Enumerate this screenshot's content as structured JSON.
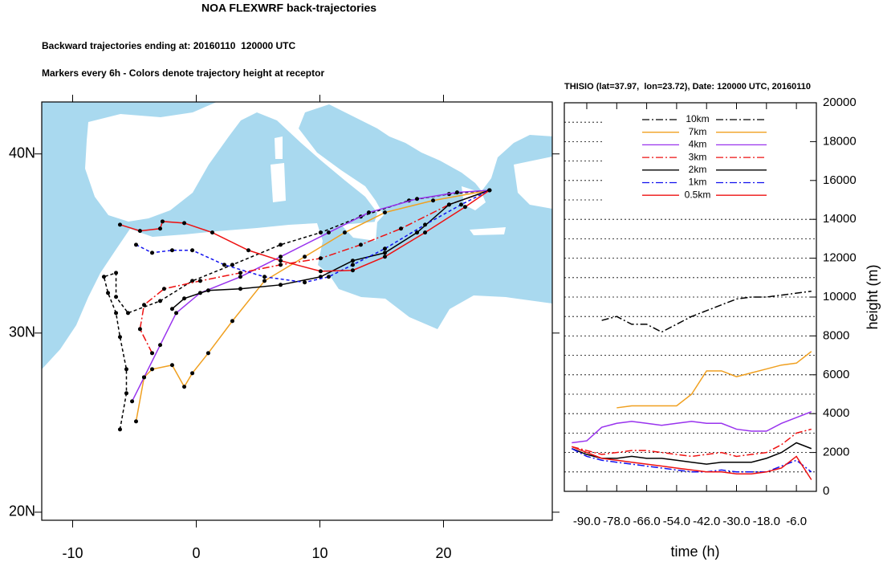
{
  "chart_data": [
    {
      "type": "map",
      "title": "NOA FLEXWRF back-trajectories",
      "subtitle": "Backward trajectories ending at: 20160110  120000 UTC",
      "note": "Markers every 6h - Colors denote trajectory height at receptor",
      "xlim": [
        -12.5,
        28.8
      ],
      "ylim": [
        19.55,
        42.9
      ],
      "xticks": [
        -10,
        0,
        10,
        20
      ],
      "yticks": [
        {
          "value": 20,
          "label": "20N"
        },
        {
          "value": 30,
          "label": "30N"
        },
        {
          "value": 40,
          "label": "40N"
        }
      ],
      "series": [
        {
          "color": "#000000",
          "dash": "dashed",
          "x": [
            -6.17,
            -5.65,
            -5.65,
            -6.17,
            -6.49,
            -7.14,
            -7.47,
            -6.49,
            -6.49,
            -5.52,
            -2.92,
            -0.32,
            2.92,
            6.82,
            10.06,
            13.31,
            17.21,
            20.45,
            23.72
          ],
          "values": [
            24.62,
            26.64,
            27.98,
            29.78,
            31.12,
            32.24,
            33.14,
            33.36,
            32.02,
            31.12,
            31.79,
            32.91,
            33.81,
            34.93,
            35.61,
            36.5,
            37.4,
            37.76,
            37.97
          ]
        },
        {
          "color": "#f0a020",
          "dash": "solid",
          "x": [
            -4.87,
            -4.22,
            -3.57,
            -1.95,
            -0.97,
            -0.32,
            0.97,
            2.92,
            5.52,
            8.77,
            12.01,
            15.26,
            19.16,
            23.72
          ],
          "values": [
            25.07,
            27.53,
            27.98,
            28.21,
            27.0,
            27.76,
            28.88,
            30.67,
            32.91,
            34.26,
            35.61,
            36.73,
            37.4,
            37.97
          ]
        },
        {
          "color": "#9933ee",
          "dash": "solid",
          "x": [
            -5.19,
            -4.22,
            -2.92,
            -1.62,
            0.32,
            3.57,
            6.82,
            10.71,
            13.96,
            17.86,
            21.1,
            23.72
          ],
          "values": [
            26.19,
            27.53,
            29.33,
            31.12,
            32.24,
            33.14,
            34.26,
            35.61,
            36.73,
            37.49,
            37.85,
            37.97
          ]
        },
        {
          "color": "#ee1111",
          "dash": "dashdot",
          "x": [
            -3.57,
            -4.55,
            -4.22,
            -2.6,
            0.32,
            3.57,
            6.82,
            10.06,
            13.31,
            16.56,
            20.45,
            23.72
          ],
          "values": [
            28.88,
            30.22,
            31.57,
            32.47,
            32.91,
            33.36,
            33.81,
            34.17,
            34.93,
            35.83,
            37.17,
            37.97
          ]
        },
        {
          "color": "#000000",
          "dash": "solid",
          "x": [
            -1.95,
            -0.97,
            0.97,
            3.57,
            6.82,
            10.06,
            12.66,
            15.26,
            17.86,
            20.45,
            23.72
          ],
          "values": [
            31.35,
            31.93,
            32.38,
            32.47,
            32.69,
            33.14,
            34.04,
            34.48,
            35.61,
            37.17,
            37.97
          ]
        },
        {
          "color": "#1111ee",
          "dash": "dashed",
          "x": [
            -4.87,
            -3.57,
            -1.95,
            -0.32,
            2.27,
            5.52,
            8.77,
            10.71,
            12.66,
            15.26,
            18.51,
            21.43,
            23.72
          ],
          "values": [
            34.93,
            34.48,
            34.62,
            34.62,
            33.81,
            33.14,
            32.83,
            33.14,
            33.81,
            34.71,
            36.05,
            37.17,
            37.97
          ]
        },
        {
          "color": "#ee1111",
          "dash": "solid",
          "x": [
            -6.17,
            -4.55,
            -2.92,
            -2.73,
            -0.97,
            1.3,
            4.22,
            6.82,
            10.06,
            12.66,
            15.26,
            18.51,
            21.75,
            23.72
          ],
          "values": [
            36.05,
            35.7,
            35.83,
            36.23,
            36.14,
            35.61,
            34.62,
            34.04,
            33.45,
            33.5,
            34.26,
            35.61,
            37.04,
            37.97
          ]
        }
      ]
    },
    {
      "type": "line",
      "title": "THISIO (lat=37.97,  lon=23.72), Date: 120000 UTC, 20160110",
      "xlabel": "time (h)",
      "ylabel": "height (m)",
      "xlim": [
        -99,
        2
      ],
      "ylim": [
        0,
        20000
      ],
      "xticks": [
        {
          "value": -90,
          "label": "-90.0"
        },
        {
          "value": -78,
          "label": "-78.0"
        },
        {
          "value": -66,
          "label": "-66.0"
        },
        {
          "value": -54,
          "label": "-54.0"
        },
        {
          "value": -42,
          "label": "-42.0"
        },
        {
          "value": -30,
          "label": "-30.0"
        },
        {
          "value": -18,
          "label": "-18.0"
        },
        {
          "value": -6,
          "label": "-6.0"
        }
      ],
      "yticks": [
        0,
        2000,
        4000,
        6000,
        8000,
        10000,
        12000,
        14000,
        16000,
        18000,
        20000
      ],
      "ygrid": [
        1000,
        2000,
        3000,
        4000,
        5000,
        6000,
        7000,
        8000,
        9000,
        10000,
        11000,
        12000,
        13000,
        14000,
        15000,
        16000,
        17000,
        18000,
        19000
      ],
      "x": [
        -96,
        -90,
        -84,
        -78,
        -72,
        -66,
        -60,
        -54,
        -48,
        -42,
        -36,
        -30,
        -24,
        -18,
        -12,
        -6,
        0
      ],
      "series": [
        {
          "name": "10km",
          "color": "#000000",
          "dash": "dashdot",
          "values": [
            null,
            null,
            8800,
            9000,
            8600,
            8600,
            8200,
            8600,
            9000,
            9300,
            9600,
            9900,
            10000,
            10000,
            10100,
            10200,
            10300
          ]
        },
        {
          "name": "7km",
          "color": "#f0a020",
          "dash": "solid",
          "values": [
            null,
            null,
            null,
            4300,
            4400,
            4400,
            4400,
            4400,
            5000,
            6200,
            6200,
            5900,
            6100,
            6300,
            6500,
            6600,
            7200
          ]
        },
        {
          "name": "4km",
          "color": "#9933ee",
          "dash": "solid",
          "values": [
            2500,
            2600,
            3300,
            3500,
            3600,
            3500,
            3400,
            3500,
            3600,
            3500,
            3500,
            3200,
            3100,
            3100,
            3500,
            3800,
            4100
          ]
        },
        {
          "name": "3km",
          "color": "#ee1111",
          "dash": "dashdot",
          "values": [
            2300,
            2100,
            1900,
            2000,
            2100,
            2100,
            2000,
            1900,
            1800,
            1900,
            2000,
            1800,
            1900,
            2000,
            2400,
            3000,
            3200
          ]
        },
        {
          "name": "2km",
          "color": "#000000",
          "dash": "solid",
          "values": [
            2200,
            1900,
            1700,
            1700,
            1800,
            1700,
            1700,
            1600,
            1500,
            1400,
            1500,
            1500,
            1500,
            1700,
            2000,
            2500,
            2200
          ]
        },
        {
          "name": "1km",
          "color": "#1111ee",
          "dash": "dashdot",
          "values": [
            2200,
            1800,
            1600,
            1500,
            1400,
            1300,
            1200,
            1100,
            1000,
            1000,
            1100,
            1000,
            1000,
            1000,
            1300,
            1600,
            1000
          ]
        },
        {
          "name": "0.5km",
          "color": "#ee1111",
          "dash": "solid",
          "values": [
            2300,
            2000,
            1700,
            1600,
            1500,
            1400,
            1300,
            1200,
            1100,
            1000,
            1000,
            900,
            900,
            1000,
            1200,
            1800,
            600
          ]
        }
      ]
    }
  ]
}
